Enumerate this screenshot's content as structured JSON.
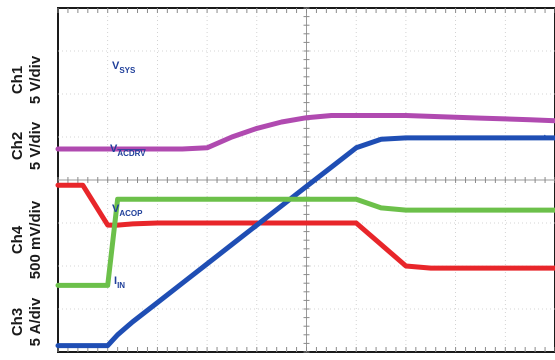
{
  "chart_data": {
    "type": "line",
    "title": "",
    "grid": true,
    "x": [
      0,
      0.5,
      1.0,
      1.2,
      1.5,
      2.0,
      2.5,
      3.0,
      3.5,
      4.0,
      4.5,
      5.0,
      5.5,
      6.0,
      6.5,
      7.0,
      7.5,
      8.0,
      8.5,
      9.0,
      9.5,
      10.0
    ],
    "channel_labels": [
      {
        "line1": "Ch1",
        "line2": "5 V/div"
      },
      {
        "line1": "Ch2",
        "line2": "5 V/div"
      },
      {
        "line1": "Ch4",
        "line2": "500 mV/div"
      },
      {
        "line1": "Ch3",
        "line2": "5 A/div"
      }
    ],
    "series": [
      {
        "name": "V_SYS",
        "label_main": "V",
        "label_sub": "SYS",
        "color": "#e8262a",
        "values": [
          3.88,
          3.88,
          2.95,
          2.95,
          2.98,
          3.0,
          3.0,
          3.0,
          3.0,
          3.0,
          3.0,
          3.0,
          3.0,
          3.0,
          2.5,
          2.0,
          1.95,
          1.95,
          1.95,
          1.95,
          1.95,
          1.95
        ]
      },
      {
        "name": "V_ACDRV",
        "label_main": "V",
        "label_sub": "ACDRV",
        "sub_overline": true,
        "color": "#1f4eb4",
        "values": [
          0.15,
          0.15,
          0.15,
          0.4,
          0.7,
          1.15,
          1.6,
          2.05,
          2.5,
          2.95,
          3.4,
          3.85,
          4.3,
          4.75,
          4.95,
          4.98,
          4.98,
          4.98,
          4.98,
          4.98,
          4.98,
          4.98
        ]
      },
      {
        "name": "V_ACOP",
        "label_main": "V",
        "label_sub": "ACOP",
        "color": "#b04ab0",
        "values": [
          4.72,
          4.72,
          4.72,
          4.72,
          4.72,
          4.72,
          4.72,
          4.75,
          5.0,
          5.2,
          5.35,
          5.45,
          5.5,
          5.5,
          5.5,
          5.5,
          5.48,
          5.46,
          5.44,
          5.42,
          5.4,
          5.38
        ]
      },
      {
        "name": "I_IN",
        "label_main": "I",
        "label_sub": "IN",
        "color": "#6cc04a",
        "values": [
          1.55,
          1.55,
          1.55,
          3.55,
          3.55,
          3.55,
          3.55,
          3.55,
          3.55,
          3.55,
          3.55,
          3.55,
          3.55,
          3.55,
          3.35,
          3.3,
          3.3,
          3.3,
          3.3,
          3.3,
          3.3,
          3.3
        ]
      }
    ],
    "xlabel": "",
    "ylabel": "",
    "xlim": [
      0,
      10
    ],
    "ylim": [
      0,
      8
    ]
  }
}
